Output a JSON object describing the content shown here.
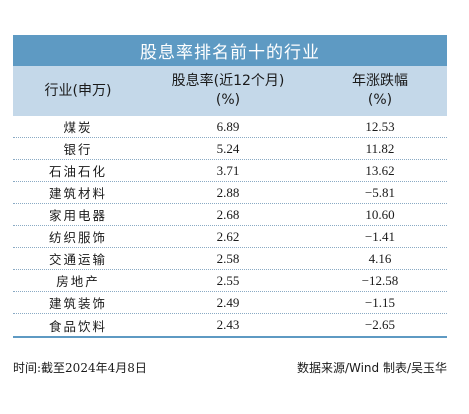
{
  "title": "股息率排名前十的行业",
  "headers": {
    "industry": "行业(申万)",
    "dividend_line1": "股息率(近12个月)",
    "dividend_line2": "(%)",
    "change_line1": "年涨跌幅",
    "change_line2": "(%)"
  },
  "rows": [
    {
      "industry": "煤炭",
      "dividend": "6.89",
      "change": "12.53"
    },
    {
      "industry": "银行",
      "dividend": "5.24",
      "change": "11.82"
    },
    {
      "industry": "石油石化",
      "dividend": "3.71",
      "change": "13.62"
    },
    {
      "industry": "建筑材料",
      "dividend": "2.88",
      "change": "−5.81"
    },
    {
      "industry": "家用电器",
      "dividend": "2.68",
      "change": "10.60"
    },
    {
      "industry": "纺织服饰",
      "dividend": "2.62",
      "change": "−1.41"
    },
    {
      "industry": "交通运输",
      "dividend": "2.58",
      "change": "4.16"
    },
    {
      "industry": "房地产",
      "dividend": "2.55",
      "change": "−12.58"
    },
    {
      "industry": "建筑装饰",
      "dividend": "2.49",
      "change": "−1.15"
    },
    {
      "industry": "食品饮料",
      "dividend": "2.43",
      "change": "−2.65"
    }
  ],
  "footer": {
    "time": "时间:截至2024年4月8日",
    "source": "数据来源/Wind 制表/吴玉华"
  },
  "colors": {
    "title_bg": "#5e9ac3",
    "header_bg": "#c4d8e9"
  }
}
